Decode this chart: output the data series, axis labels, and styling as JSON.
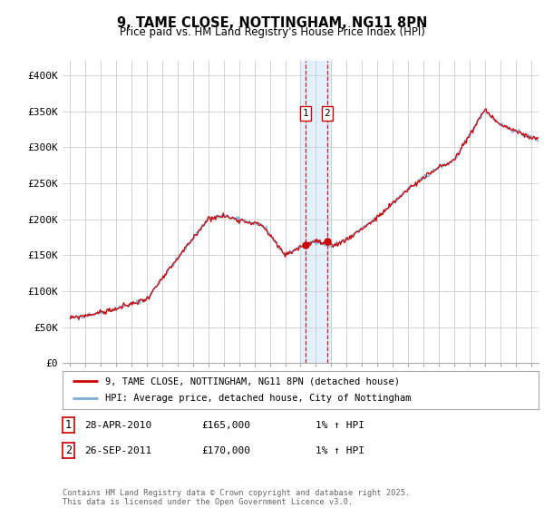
{
  "title": "9, TAME CLOSE, NOTTINGHAM, NG11 8PN",
  "subtitle": "Price paid vs. HM Land Registry's House Price Index (HPI)",
  "legend_line1": "9, TAME CLOSE, NOTTINGHAM, NG11 8PN (detached house)",
  "legend_line2": "HPI: Average price, detached house, City of Nottingham",
  "sale1_label": "1",
  "sale1_date": "28-APR-2010",
  "sale1_price": "£165,000",
  "sale1_hpi": "1% ↑ HPI",
  "sale1_x": 2010.32,
  "sale1_y": 165000,
  "sale2_label": "2",
  "sale2_date": "26-SEP-2011",
  "sale2_price": "£170,000",
  "sale2_hpi": "1% ↑ HPI",
  "sale2_x": 2011.73,
  "sale2_y": 170000,
  "shade_x1": 2010.0,
  "shade_x2": 2012.0,
  "ylim_min": 0,
  "ylim_max": 420000,
  "yticks": [
    0,
    50000,
    100000,
    150000,
    200000,
    250000,
    300000,
    350000,
    400000
  ],
  "ytick_labels": [
    "£0",
    "£50K",
    "£100K",
    "£150K",
    "£200K",
    "£250K",
    "£300K",
    "£350K",
    "£400K"
  ],
  "xlim_min": 1994.5,
  "xlim_max": 2025.5,
  "line_color_red": "#cc0000",
  "line_color_blue": "#7aacdc",
  "shade_color": "#ddeeff",
  "vline_color": "#cc0000",
  "grid_color": "#cccccc",
  "bg_color": "#ffffff",
  "footnote": "Contains HM Land Registry data © Crown copyright and database right 2025.\nThis data is licensed under the Open Government Licence v3.0."
}
